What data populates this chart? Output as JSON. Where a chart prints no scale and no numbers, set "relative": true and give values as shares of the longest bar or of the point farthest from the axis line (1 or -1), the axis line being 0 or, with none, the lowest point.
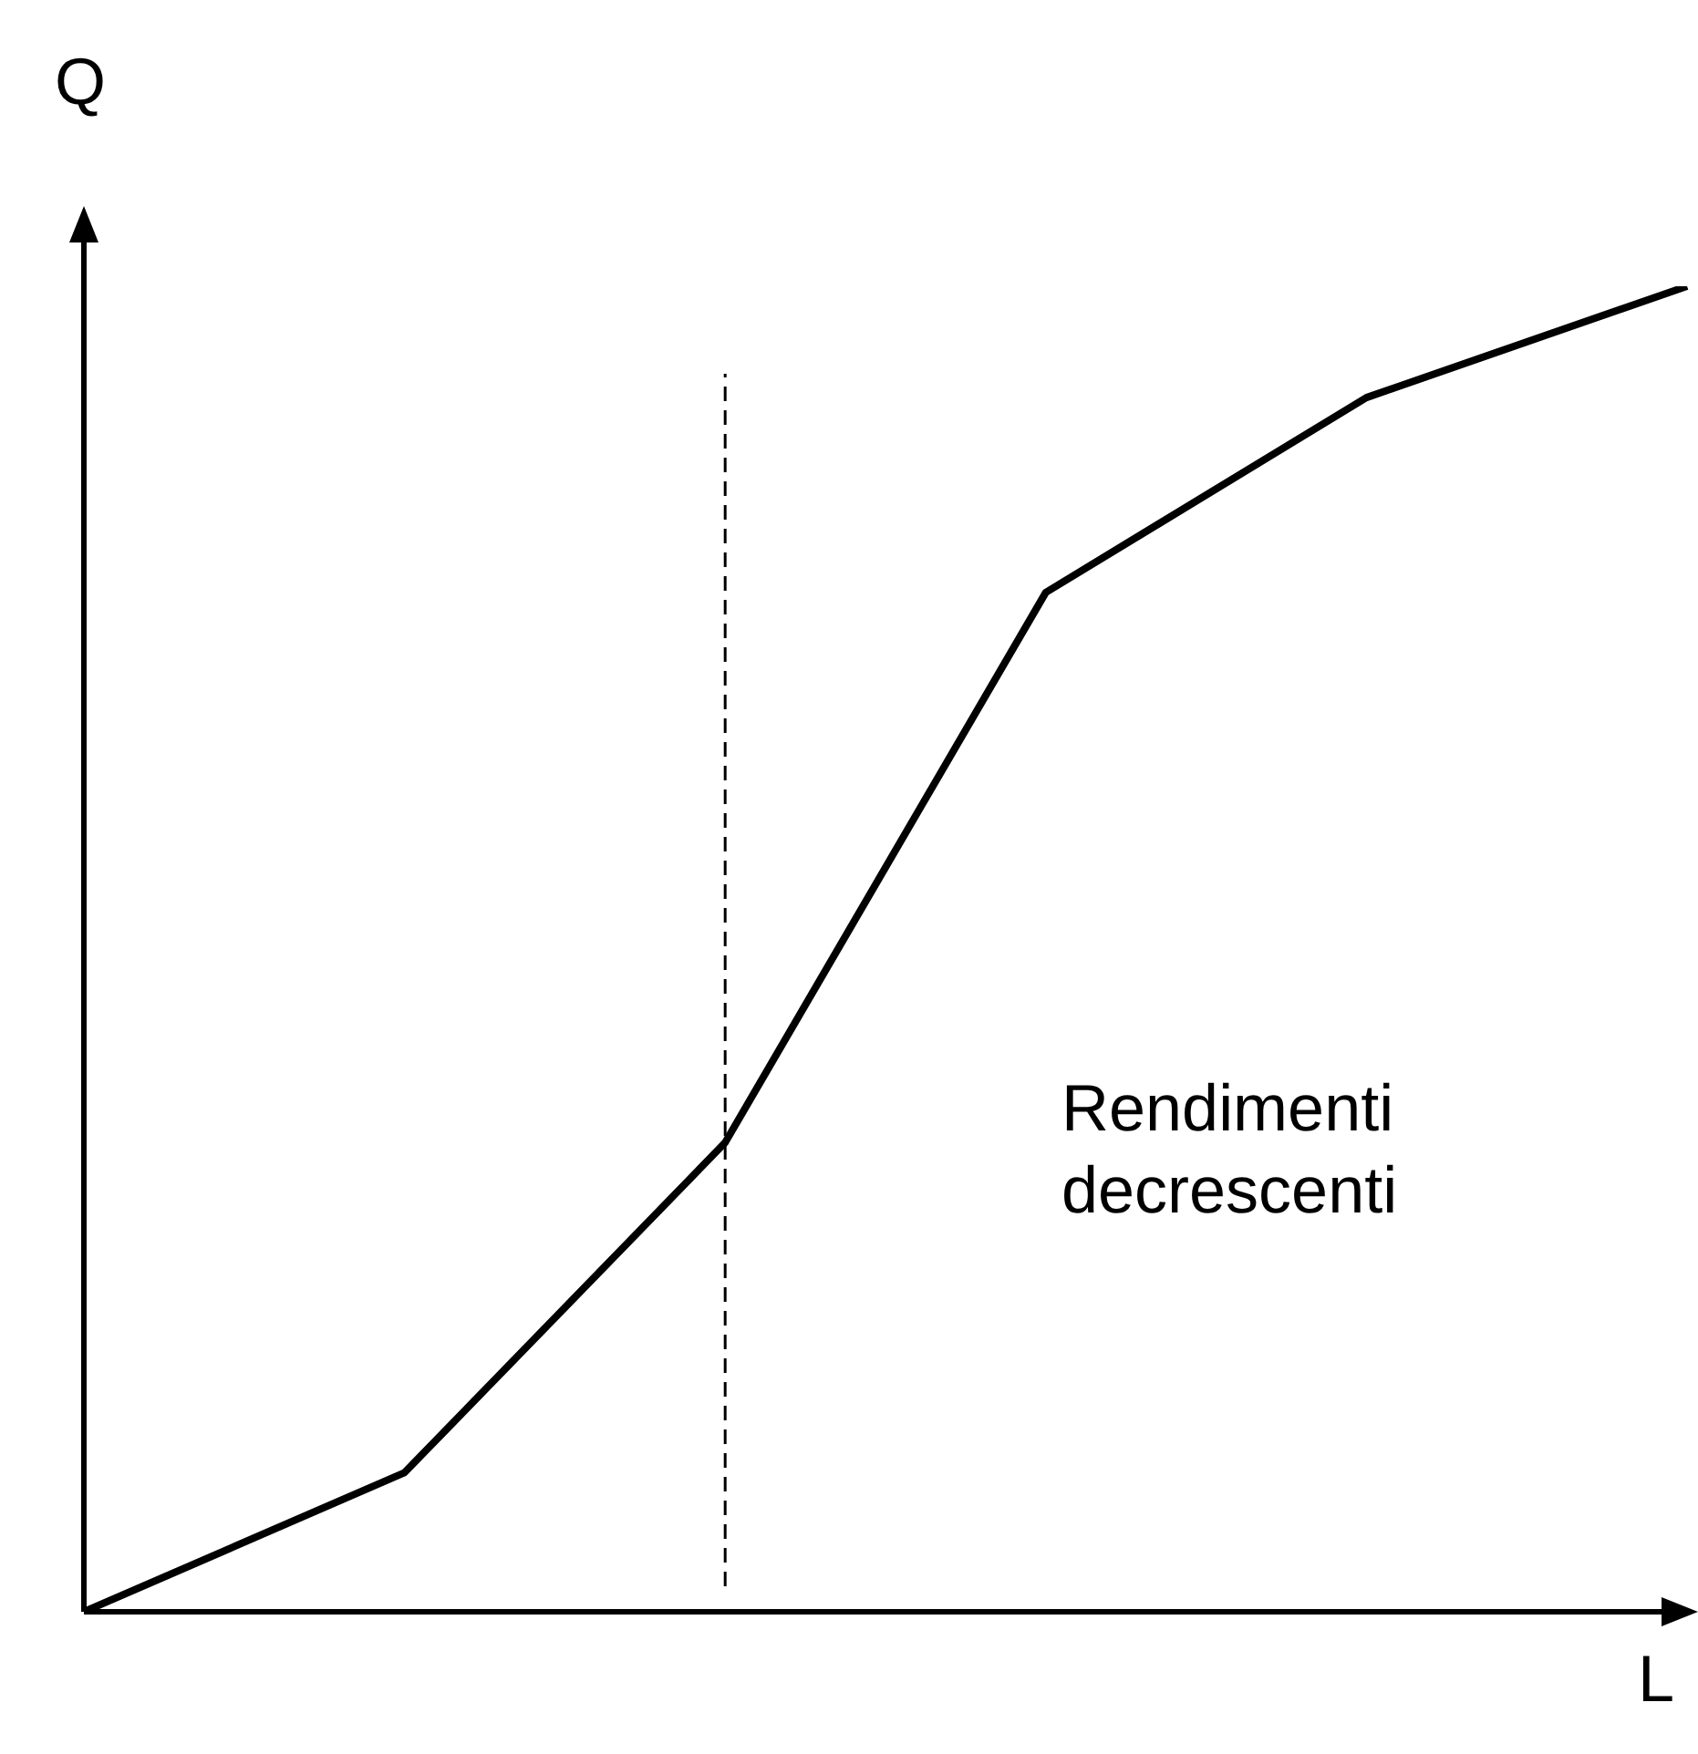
{
  "chart_data": {
    "type": "line",
    "relative": true,
    "xlabel": "L",
    "ylabel": "Q",
    "categories": [
      null,
      null,
      null,
      null,
      null,
      null
    ],
    "series": [
      {
        "color": "#000000",
        "values": [
          0,
          0.105,
          0.354,
          0.769,
          0.916,
          1
        ]
      }
    ],
    "annotations": [
      "Rendimenti decrescenti"
    ],
    "marker": "none",
    "line_style": "solid",
    "legend": false
  }
}
